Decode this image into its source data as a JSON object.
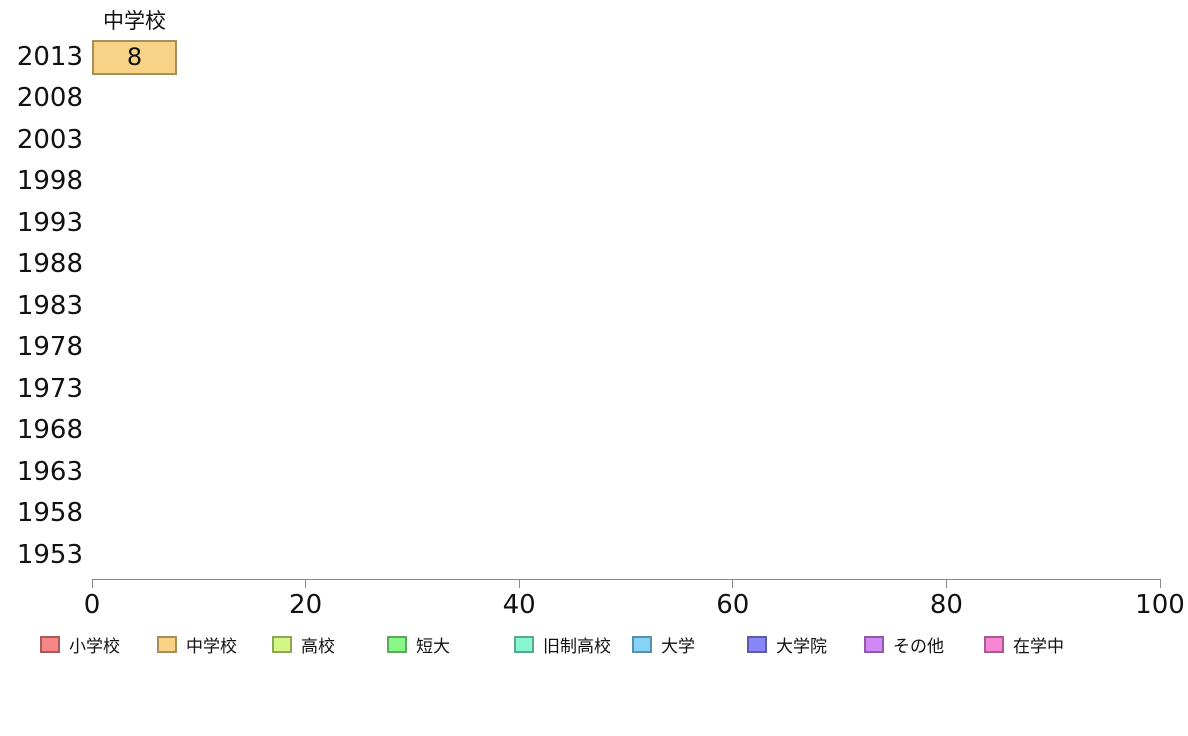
{
  "chart_data": {
    "type": "bar",
    "orientation": "horizontal",
    "title": "中学校",
    "categories": [
      "2013",
      "2008",
      "2003",
      "1998",
      "1993",
      "1988",
      "1983",
      "1978",
      "1973",
      "1968",
      "1963",
      "1958",
      "1953"
    ],
    "x_ticks": [
      "0",
      "20",
      "40",
      "60",
      "80",
      "100"
    ],
    "xlim": [
      0,
      100
    ],
    "grid": false,
    "legend_position": "bottom",
    "axis_color": "#888888",
    "text_color": "#111111",
    "bars": [
      {
        "category": "2013",
        "series": "中学校",
        "value": 8,
        "label": "8",
        "color": "#F7D287"
      }
    ],
    "legend": [
      {
        "label": "小学校",
        "color": "#F78787"
      },
      {
        "label": "中学校",
        "color": "#F7D287"
      },
      {
        "label": "高校",
        "color": "#D2F787"
      },
      {
        "label": "短大",
        "color": "#87F787"
      },
      {
        "label": "旧制高校",
        "color": "#87F7D2"
      },
      {
        "label": "大学",
        "color": "#87D2F7"
      },
      {
        "label": "大学院",
        "color": "#8787F7"
      },
      {
        "label": "その他",
        "color": "#D287F7"
      },
      {
        "label": "在学中",
        "color": "#F787D2"
      }
    ]
  }
}
